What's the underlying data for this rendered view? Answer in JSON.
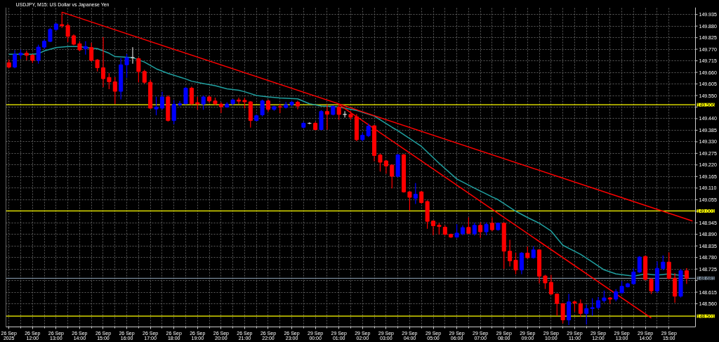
{
  "chart_data": {
    "type": "candlestick",
    "title": "USDJPY, M15: US Dollar vs Japanese Yen",
    "categories": [
      "26 Sep 2025",
      null,
      null,
      null,
      "26 Sep 12:00",
      null,
      null,
      null,
      "26 Sep 13:00",
      null,
      null,
      null,
      "26 Sep 14:00",
      null,
      null,
      null,
      "26 Sep 15:00",
      null,
      null,
      null,
      "26 Sep 16:00",
      null,
      null,
      null,
      "26 Sep 17:00",
      null,
      null,
      null,
      "26 Sep 18:00",
      null,
      null,
      null,
      "26 Sep 19:00",
      null,
      null,
      null,
      "26 Sep 20:00",
      null,
      null,
      null,
      "26 Sep 21:00",
      null,
      null,
      null,
      "26 Sep 22:00",
      null,
      null,
      null,
      "26 Sep 23:00",
      null,
      null,
      null,
      "29 Sep 00:00",
      null,
      null,
      null,
      "29 Sep 01:00",
      null,
      null,
      null,
      "29 Sep 02:00",
      null,
      null,
      null,
      "29 Sep 03:00",
      null,
      null,
      null,
      "29 Sep 04:00",
      null,
      null,
      null,
      "29 Sep 05:00",
      null,
      null,
      null,
      "29 Sep 06:00",
      null,
      null,
      null,
      "29 Sep 07:00",
      null,
      null,
      null,
      "29 Sep 08:00",
      null,
      null,
      null,
      "29 Sep 09:00",
      null,
      null,
      null,
      "29 Sep 10:00",
      null,
      null,
      null,
      "29 Sep 11:00",
      null,
      null,
      null,
      "29 Sep 12:00",
      null,
      null,
      null,
      "29 Sep 13:00",
      null,
      null,
      null,
      "29 Sep 14:00",
      null,
      null,
      null,
      "29 Sep 15:00",
      null,
      null,
      null,
      null
    ],
    "ohlc": [
      [
        149.706,
        149.719,
        149.681,
        149.685
      ],
      [
        149.685,
        149.764,
        149.681,
        149.746
      ],
      [
        149.743,
        149.767,
        149.726,
        149.751
      ],
      [
        149.751,
        149.762,
        149.719,
        149.741
      ],
      [
        149.741,
        149.745,
        149.706,
        149.717
      ],
      [
        149.717,
        149.79,
        149.703,
        149.78
      ],
      [
        149.78,
        149.815,
        149.774,
        149.808
      ],
      [
        149.807,
        149.87,
        149.806,
        149.864
      ],
      [
        149.864,
        149.892,
        149.86,
        149.89
      ],
      [
        149.887,
        149.946,
        149.873,
        149.882
      ],
      [
        149.883,
        149.89,
        149.806,
        149.831
      ],
      [
        149.834,
        149.839,
        149.79,
        149.794
      ],
      [
        149.796,
        149.806,
        149.762,
        149.767
      ],
      [
        149.773,
        149.806,
        149.746,
        149.783
      ],
      [
        149.778,
        149.799,
        149.713,
        149.717
      ],
      [
        149.719,
        149.722,
        149.666,
        149.682
      ],
      [
        149.682,
        149.826,
        149.591,
        149.63
      ],
      [
        149.636,
        149.655,
        149.582,
        149.615
      ],
      [
        149.615,
        149.636,
        149.511,
        149.57
      ],
      [
        149.57,
        149.726,
        149.533,
        149.696
      ],
      [
        149.696,
        149.746,
        149.636,
        149.73
      ],
      [
        149.73,
        149.778,
        149.703,
        149.73
      ],
      [
        149.725,
        149.73,
        149.614,
        149.664
      ],
      [
        149.664,
        149.671,
        149.607,
        149.613
      ],
      [
        149.613,
        149.623,
        149.489,
        149.49
      ],
      [
        149.486,
        149.543,
        149.458,
        149.495
      ],
      [
        149.49,
        149.566,
        149.484,
        149.543
      ],
      [
        149.543,
        149.549,
        149.428,
        149.431
      ],
      [
        149.431,
        149.527,
        149.415,
        149.508
      ],
      [
        149.506,
        149.522,
        149.5,
        149.511
      ],
      [
        149.511,
        149.588,
        149.508,
        149.585
      ],
      [
        149.585,
        149.591,
        149.506,
        149.511
      ],
      [
        149.516,
        149.543,
        149.484,
        149.51
      ],
      [
        149.509,
        149.548,
        149.484,
        149.543
      ],
      [
        149.543,
        149.548,
        149.516,
        149.524
      ],
      [
        149.524,
        149.538,
        149.506,
        149.511
      ],
      [
        149.509,
        149.516,
        149.468,
        149.497
      ],
      [
        149.495,
        149.516,
        149.493,
        149.509
      ],
      [
        149.511,
        149.532,
        149.506,
        149.529
      ],
      [
        149.529,
        149.538,
        149.511,
        149.523
      ],
      [
        149.527,
        149.538,
        149.49,
        149.52
      ],
      [
        149.52,
        149.522,
        149.399,
        149.431
      ],
      [
        149.431,
        149.458,
        149.429,
        149.454
      ],
      [
        149.458,
        149.529,
        149.452,
        149.524
      ],
      [
        149.524,
        149.529,
        149.474,
        149.484
      ],
      [
        149.484,
        149.5,
        149.479,
        149.497
      ],
      [
        149.497,
        149.509,
        149.468,
        149.495
      ],
      [
        149.493,
        149.518,
        149.49,
        149.506
      ],
      [
        149.506,
        149.524,
        149.5,
        149.518
      ],
      [
        149.518,
        149.524,
        149.486,
        149.5
      ],
      [
        149.399,
        149.424,
        149.396,
        149.418
      ],
      [
        149.418,
        149.421,
        149.415,
        149.418
      ],
      [
        149.418,
        149.424,
        149.386,
        149.388
      ],
      [
        149.388,
        149.479,
        149.386,
        149.474
      ],
      [
        149.474,
        149.506,
        149.389,
        149.461
      ],
      [
        149.46,
        149.501,
        149.457,
        149.498
      ],
      [
        149.495,
        149.506,
        149.436,
        149.46
      ],
      [
        149.46,
        149.474,
        149.447,
        149.46
      ],
      [
        149.46,
        149.474,
        149.436,
        149.447
      ],
      [
        149.449,
        149.46,
        149.335,
        149.34
      ],
      [
        149.34,
        149.373,
        149.335,
        149.361
      ],
      [
        149.359,
        149.415,
        149.354,
        149.404
      ],
      [
        149.406,
        149.409,
        149.239,
        149.265
      ],
      [
        149.267,
        149.271,
        149.19,
        149.233
      ],
      [
        149.239,
        149.242,
        149.18,
        149.215
      ],
      [
        149.219,
        149.222,
        149.11,
        149.166
      ],
      [
        149.166,
        149.271,
        149.163,
        149.268
      ],
      [
        149.268,
        149.271,
        149.09,
        149.092
      ],
      [
        149.092,
        149.094,
        149.004,
        149.066
      ],
      [
        149.062,
        149.132,
        149.036,
        149.081
      ],
      [
        149.092,
        149.094,
        149.037,
        149.041
      ],
      [
        149.046,
        149.05,
        148.918,
        148.952
      ],
      [
        148.953,
        148.955,
        148.887,
        148.931
      ],
      [
        148.933,
        148.943,
        148.891,
        148.927
      ],
      [
        148.924,
        148.931,
        148.887,
        148.89
      ],
      [
        148.89,
        148.892,
        148.875,
        148.877
      ],
      [
        148.877,
        148.937,
        148.875,
        148.896
      ],
      [
        148.893,
        148.931,
        148.887,
        148.922
      ],
      [
        148.923,
        148.97,
        148.893,
        148.895
      ],
      [
        148.893,
        148.944,
        148.886,
        148.933
      ],
      [
        148.933,
        148.945,
        148.875,
        148.902
      ],
      [
        148.902,
        148.945,
        148.887,
        148.937
      ],
      [
        148.943,
        148.97,
        148.906,
        148.912
      ],
      [
        148.912,
        148.945,
        148.909,
        148.943
      ],
      [
        148.943,
        148.945,
        148.727,
        148.81
      ],
      [
        148.81,
        148.863,
        148.739,
        148.764
      ],
      [
        148.767,
        148.801,
        148.702,
        148.721
      ],
      [
        148.721,
        148.804,
        148.702,
        148.801
      ],
      [
        148.801,
        148.831,
        148.776,
        148.779
      ],
      [
        148.779,
        148.831,
        148.776,
        148.816
      ],
      [
        148.816,
        148.818,
        148.659,
        148.691
      ],
      [
        148.692,
        148.696,
        148.632,
        148.659
      ],
      [
        148.662,
        148.696,
        148.604,
        148.606
      ],
      [
        148.606,
        148.607,
        148.505,
        148.561
      ],
      [
        148.561,
        148.561,
        148.468,
        148.483
      ],
      [
        148.483,
        148.606,
        148.46,
        148.569
      ],
      [
        148.569,
        148.573,
        148.524,
        148.563
      ],
      [
        148.561,
        148.579,
        148.499,
        148.514
      ],
      [
        148.514,
        148.554,
        148.463,
        148.537
      ],
      [
        148.537,
        148.585,
        148.505,
        148.542
      ],
      [
        148.542,
        148.591,
        148.536,
        148.575
      ],
      [
        148.575,
        148.622,
        148.567,
        148.588
      ],
      [
        148.588,
        148.591,
        148.561,
        148.582
      ],
      [
        148.582,
        148.628,
        148.573,
        148.617
      ],
      [
        148.612,
        148.666,
        148.61,
        148.643
      ],
      [
        148.641,
        148.658,
        148.639,
        148.655
      ],
      [
        148.655,
        148.727,
        148.653,
        148.711
      ],
      [
        148.711,
        148.785,
        148.708,
        148.782
      ],
      [
        148.785,
        148.788,
        148.672,
        148.676
      ],
      [
        148.676,
        148.68,
        148.608,
        148.621
      ],
      [
        148.621,
        148.76,
        148.612,
        148.728
      ],
      [
        148.728,
        148.788,
        148.721,
        148.758
      ],
      [
        148.758,
        148.803,
        148.677,
        148.681
      ],
      [
        148.681,
        148.704,
        148.566,
        148.596
      ],
      [
        148.596,
        148.724,
        148.591,
        148.717
      ],
      [
        148.717,
        148.728,
        148.656,
        148.681
      ],
      null
    ],
    "colors": [
      "#ff0000",
      "#0000ff",
      "#0000ff",
      "#ff0000",
      "#ff0000",
      "#0000ff",
      "#0000ff",
      "#0000ff",
      "#0000ff",
      "#ff0000",
      "#ff0000",
      "#ff0000",
      "#ff0000",
      "#0000ff",
      "#ff0000",
      "#ff0000",
      "#ff0000",
      "#ff0000",
      "#ff0000",
      "#0000ff",
      "#0000ff",
      "#d3d3d3",
      "#ff0000",
      "#ff0000",
      "#ff0000",
      "#0000ff",
      "#0000ff",
      "#ff0000",
      "#0000ff",
      "#0000ff",
      "#0000ff",
      "#ff0000",
      "#ff0000",
      "#0000ff",
      "#ff0000",
      "#ff0000",
      "#ff0000",
      "#0000ff",
      "#0000ff",
      "#ff0000",
      "#ff0000",
      "#ff0000",
      "#0000ff",
      "#0000ff",
      "#ff0000",
      "#0000ff",
      "#ff0000",
      "#0000ff",
      "#0000ff",
      "#ff0000",
      "#0000ff",
      "#d3d3d3",
      "#ff0000",
      "#0000ff",
      "#ff0000",
      "#0000ff",
      "#ff0000",
      "#d3d3d3",
      "#ff0000",
      "#ff0000",
      "#0000ff",
      "#0000ff",
      "#ff0000",
      "#ff0000",
      "#ff0000",
      "#ff0000",
      "#0000ff",
      "#ff0000",
      "#ff0000",
      "#0000ff",
      "#ff0000",
      "#ff0000",
      "#ff0000",
      "#ff0000",
      "#ff0000",
      "#ff0000",
      "#0000ff",
      "#0000ff",
      "#ff0000",
      "#0000ff",
      "#ff0000",
      "#0000ff",
      "#ff0000",
      "#0000ff",
      "#ff0000",
      "#ff0000",
      "#ff0000",
      "#0000ff",
      "#ff0000",
      "#0000ff",
      "#ff0000",
      "#ff0000",
      "#ff0000",
      "#ff0000",
      "#ff0000",
      "#0000ff",
      "#ff0000",
      "#ff0000",
      "#0000ff",
      "#0000ff",
      "#0000ff",
      "#0000ff",
      "#ff0000",
      "#0000ff",
      "#0000ff",
      "#0000ff",
      "#0000ff",
      "#0000ff",
      "#ff0000",
      "#ff0000",
      "#0000ff",
      "#0000ff",
      "#ff0000",
      "#ff0000",
      "#0000ff",
      "#ff0000",
      null
    ],
    "series": [
      {
        "type": "line",
        "color": "#20a0a0",
        "values": [
          149.746,
          null,
          null,
          null,
          149.746,
          149.749,
          149.762,
          null,
          149.778,
          null,
          149.783,
          null,
          149.783,
          149.778,
          null,
          149.773,
          null,
          149.751,
          149.735,
          null,
          149.732,
          149.73,
          null,
          149.709,
          null,
          149.677,
          null,
          149.655,
          null,
          null,
          149.629,
          149.618,
          null,
          149.607,
          null,
          149.597,
          null,
          149.582,
          null,
          149.575,
          149.568,
          null,
          149.55,
          null,
          149.543,
          null,
          149.538,
          null,
          null,
          149.534,
          null,
          149.511,
          null,
          149.5,
          null,
          149.498,
          149.495,
          null,
          null,
          149.479,
          null,
          null,
          149.452,
          null,
          null,
          149.399,
          149.383,
          null,
          null,
          null,
          149.308,
          null,
          null,
          149.228,
          null,
          null,
          149.153,
          null,
          null,
          149.11,
          null,
          null,
          149.068,
          149.055,
          null,
          null,
          149.0,
          null,
          148.97,
          null,
          148.943,
          null,
          148.906,
          null,
          148.838,
          null,
          null,
          148.795,
          null,
          148.758,
          null,
          148.721,
          null,
          148.702,
          null,
          null,
          148.691,
          null,
          148.702,
          null,
          148.696,
          null,
          148.702,
          null,
          null,
          148.691,
          null
        ]
      },
      {
        "type": "line",
        "color": "#ff0000",
        "values": [
          null,
          null,
          null,
          null,
          null,
          null,
          null,
          null,
          null,
          149.946,
          null,
          null,
          null,
          null,
          null,
          null,
          null,
          null,
          null,
          null,
          null,
          null,
          null,
          null,
          null,
          null,
          null,
          null,
          null,
          null,
          null,
          null,
          null,
          null,
          null,
          null,
          null,
          null,
          null,
          null,
          null,
          null,
          null,
          null,
          null,
          null,
          null,
          null,
          null,
          null,
          null,
          null,
          null,
          null,
          null,
          null,
          null,
          null,
          null,
          null,
          null,
          null,
          null,
          null,
          null,
          null,
          null,
          null,
          null,
          null,
          null,
          null,
          null,
          null,
          null,
          null,
          null,
          null,
          null,
          null,
          null,
          null,
          null,
          null,
          null,
          null,
          null,
          null,
          null,
          null,
          null,
          null,
          null,
          null,
          null,
          null,
          null,
          null,
          null,
          null,
          null,
          null,
          null,
          null,
          null,
          null,
          null,
          null,
          null,
          null,
          null,
          null,
          null,
          null,
          null,
          null,
          148.953
        ]
      },
      {
        "type": "line",
        "color": "#ff0000",
        "values": [
          null,
          null,
          null,
          null,
          null,
          null,
          null,
          null,
          null,
          null,
          null,
          null,
          null,
          null,
          null,
          null,
          null,
          null,
          null,
          null,
          null,
          null,
          null,
          null,
          null,
          null,
          null,
          null,
          null,
          null,
          null,
          null,
          null,
          null,
          null,
          null,
          null,
          null,
          null,
          null,
          null,
          null,
          null,
          null,
          null,
          null,
          null,
          null,
          null,
          null,
          null,
          null,
          null,
          null,
          null,
          null,
          149.507,
          null,
          null,
          null,
          null,
          null,
          null,
          null,
          null,
          null,
          null,
          null,
          null,
          null,
          null,
          null,
          null,
          null,
          null,
          null,
          null,
          null,
          null,
          null,
          null,
          null,
          null,
          null,
          null,
          null,
          null,
          null,
          null,
          null,
          null,
          null,
          null,
          null,
          null,
          null,
          null,
          null,
          null,
          null,
          null,
          null,
          null,
          null,
          null,
          null,
          null,
          null,
          null,
          148.492,
          null,
          null,
          null,
          null,
          null,
          null,
          null
        ]
      }
    ],
    "ref_lines": [
      {
        "axis": "y",
        "value": 149.506,
        "label": "149.506",
        "color": "#ffff00"
      },
      {
        "axis": "y",
        "value": 149.001,
        "label": "149.001",
        "color": "#ffff00"
      },
      {
        "axis": "y",
        "value": 148.501,
        "label": "148.501",
        "color": "#ffff00"
      },
      {
        "axis": "y",
        "value": 148.681,
        "label": "148.681",
        "color": "#778899"
      }
    ],
    "ylim": [
      148.45,
      149.969
    ],
    "yticks": [
      {
        "value": 148.56,
        "label": "148.560"
      },
      {
        "value": 148.615,
        "label": "148.615"
      },
      {
        "value": 148.67,
        "label": null
      },
      {
        "value": 148.725,
        "label": "148.725"
      },
      {
        "value": 148.78,
        "label": "148.780"
      },
      {
        "value": 148.835,
        "label": "148.835"
      },
      {
        "value": 148.89,
        "label": "148.890"
      },
      {
        "value": 148.945,
        "label": "148.945"
      },
      {
        "value": 149.0,
        "label": null
      },
      {
        "value": 149.055,
        "label": "149.055"
      },
      {
        "value": 149.11,
        "label": "149.110"
      },
      {
        "value": 149.165,
        "label": "149.165"
      },
      {
        "value": 149.22,
        "label": "149.220"
      },
      {
        "value": 149.275,
        "label": "149.275"
      },
      {
        "value": 149.33,
        "label": "149.330"
      },
      {
        "value": 149.385,
        "label": "149.385"
      },
      {
        "value": 149.44,
        "label": "149.440"
      },
      {
        "value": 149.495,
        "label": null
      },
      {
        "value": 149.55,
        "label": "149.550"
      },
      {
        "value": 149.605,
        "label": "149.605"
      },
      {
        "value": 149.66,
        "label": "149.660"
      },
      {
        "value": 149.715,
        "label": "149.715"
      },
      {
        "value": 149.77,
        "label": "149.770"
      },
      {
        "value": 149.825,
        "label": "149.825"
      },
      {
        "value": 149.88,
        "label": "149.880"
      },
      {
        "value": 149.935,
        "label": "149.935"
      }
    ],
    "grid": true
  }
}
